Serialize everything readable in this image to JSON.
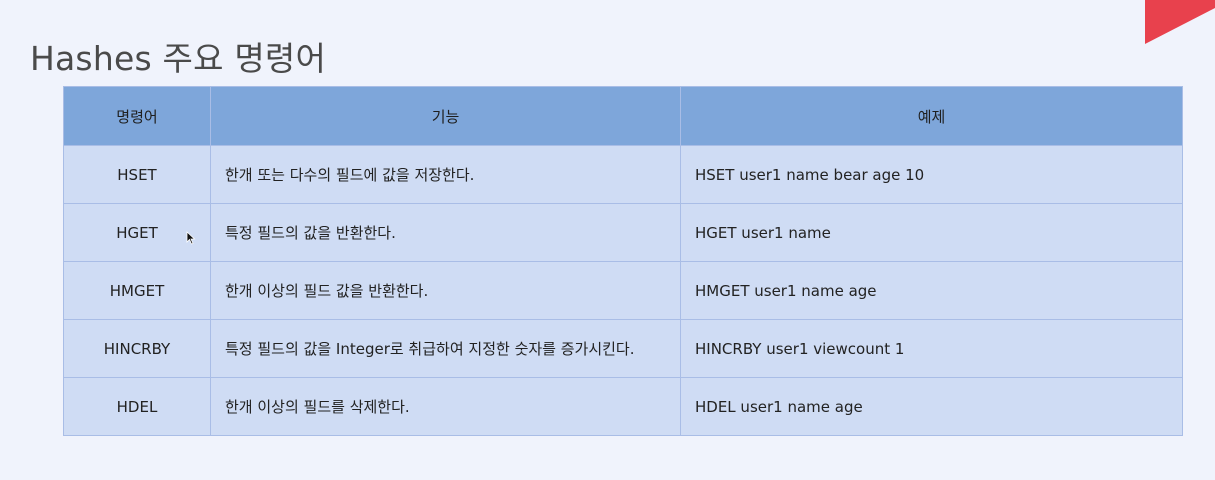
{
  "slide": {
    "title": "Hashes 주요 명령어"
  },
  "table": {
    "headers": {
      "command": "명령어",
      "function": "기능",
      "example": "예제"
    },
    "rows": [
      {
        "command": "HSET",
        "function": "한개 또는 다수의 필드에 값을 저장한다.",
        "example": "HSET user1 name bear age 10"
      },
      {
        "command": "HGET",
        "function": "특정 필드의 값을 반환한다.",
        "example": "HGET user1 name"
      },
      {
        "command": "HMGET",
        "function": "한개 이상의 필드 값을 반환한다.",
        "example": "HMGET user1 name age"
      },
      {
        "command": "HINCRBY",
        "function": "특정 필드의 값을 Integer로 취급하여 지정한 숫자를 증가시킨다.",
        "example": "HINCRBY user1 viewcount 1"
      },
      {
        "command": "HDEL",
        "function": "한개 이상의 필드를 삭제한다.",
        "example": "HDEL user1 name age"
      }
    ]
  },
  "colors": {
    "background": "#f0f3fc",
    "header_fill": "#7ea6da",
    "cell_fill": "#cfdcf4",
    "border": "#a9bde6",
    "accent": "#e8414d"
  }
}
